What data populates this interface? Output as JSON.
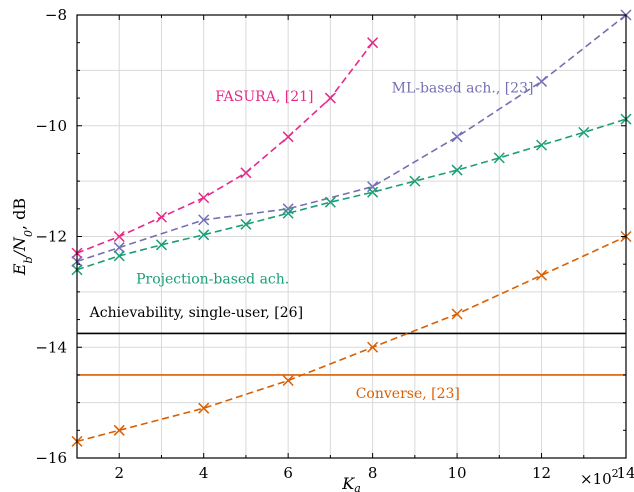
{
  "chart_data": {
    "type": "line",
    "xlabel": "K_a",
    "ylabel": "E_b/N_0, dB",
    "x_multiplier_label": "×10",
    "x_multiplier_exp": "2",
    "xlim": [
      1,
      14
    ],
    "ylim": [
      -16,
      -8
    ],
    "xticks": [
      2,
      4,
      6,
      8,
      10,
      12,
      14
    ],
    "yticks": [
      -8,
      -10,
      -12,
      -14,
      -16
    ],
    "xtick_labels": [
      "2",
      "4",
      "6",
      "8",
      "10",
      "12",
      "14"
    ],
    "ytick_labels": [
      "−8",
      "−10",
      "−12",
      "−14",
      "−16"
    ],
    "grid": true,
    "series": [
      {
        "name": "FASURA, [21]",
        "color": "#e7298a",
        "style": "dashed-x",
        "x": [
          1,
          2,
          3,
          4,
          5,
          6,
          7,
          8
        ],
        "y": [
          -12.3,
          -12.0,
          -11.65,
          -11.3,
          -10.85,
          -10.2,
          -9.5,
          -8.5
        ]
      },
      {
        "name": "ML-based ach., [23]",
        "color": "#7570b3",
        "style": "dashed-x",
        "x": [
          1,
          2,
          4,
          6,
          8,
          10,
          12,
          14
        ],
        "y": [
          -12.45,
          -12.2,
          -11.7,
          -11.5,
          -11.1,
          -10.2,
          -9.2,
          -8.0
        ]
      },
      {
        "name": "Projection-based ach.",
        "color": "#1b9e77",
        "style": "dashed-x",
        "x": [
          1,
          2,
          3,
          4,
          5,
          6,
          7,
          8,
          9,
          10,
          11,
          12,
          13,
          14
        ],
        "y": [
          -12.6,
          -12.35,
          -12.15,
          -11.97,
          -11.78,
          -11.58,
          -11.38,
          -11.2,
          -11.0,
          -10.8,
          -10.58,
          -10.35,
          -10.12,
          -9.88
        ]
      },
      {
        "name": "Achievability, single-user, [26]",
        "color": "#000000",
        "style": "solid",
        "x": [
          1,
          14
        ],
        "y": [
          -13.75,
          -13.75
        ]
      },
      {
        "name": "Converse, [23]",
        "color": "#d95f02",
        "style": "solid",
        "x": [
          1,
          14
        ],
        "y": [
          -14.5,
          -14.5
        ]
      },
      {
        "name": "",
        "color": "#d95f02",
        "style": "dashed-x",
        "x": [
          1,
          2,
          4,
          6,
          8,
          10,
          12,
          14
        ],
        "y": [
          -15.7,
          -15.5,
          -15.1,
          -14.6,
          -14.0,
          -13.4,
          -12.7,
          -12.0
        ]
      }
    ],
    "annotations": [
      {
        "text": "FASURA, [21]",
        "x": 6.6,
        "y": -9.55,
        "color": "#e7298a",
        "anchor": "end"
      },
      {
        "text": "ML-based ach., [23]",
        "x": 8.45,
        "y": -9.4,
        "color": "#7570b3",
        "anchor": "start"
      },
      {
        "text": "Projection-based ach.",
        "x": 2.4,
        "y": -12.85,
        "color": "#1b9e77",
        "anchor": "start"
      },
      {
        "text": "Achievability, single-user, [26]",
        "x": 1.3,
        "y": -13.45,
        "color": "#000000",
        "anchor": "start"
      },
      {
        "text": "Converse, [23]",
        "x": 7.6,
        "y": -14.92,
        "color": "#d95f02",
        "anchor": "start"
      }
    ]
  }
}
